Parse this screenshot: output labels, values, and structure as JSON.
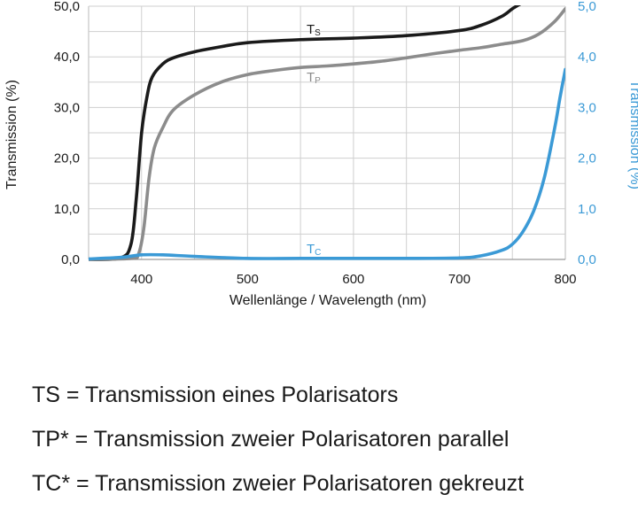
{
  "chart_data": {
    "type": "line",
    "title": "",
    "xlabel": "Wellenlänge / Wavelength (nm)",
    "ylabel": "Transmission (%)",
    "ylabel_right": "Transmission (%)",
    "xlim": [
      350,
      800
    ],
    "ylim": [
      0,
      50
    ],
    "ylim_right": [
      0,
      5
    ],
    "grid": true,
    "x_ticks": [
      "400",
      "500",
      "600",
      "700",
      "800"
    ],
    "y_ticks": [
      "0,0",
      "10,0",
      "20,0",
      "30,0",
      "40,0",
      "50,0"
    ],
    "y_ticks_right": [
      "0,0",
      "1,0",
      "2,0",
      "3,0",
      "4,0",
      "5,0"
    ],
    "series": [
      {
        "name": "TS",
        "label_main": "T",
        "label_sub": "S",
        "color": "#1a1a1a",
        "axis": "left",
        "points": [
          [
            350,
            0
          ],
          [
            380,
            0.3
          ],
          [
            390,
            3
          ],
          [
            395,
            12
          ],
          [
            400,
            25
          ],
          [
            405,
            32
          ],
          [
            410,
            36
          ],
          [
            420,
            38.6
          ],
          [
            430,
            39.8
          ],
          [
            450,
            41
          ],
          [
            475,
            42
          ],
          [
            500,
            42.8
          ],
          [
            550,
            43.4
          ],
          [
            600,
            43.7
          ],
          [
            650,
            44.2
          ],
          [
            700,
            45.2
          ],
          [
            720,
            46.2
          ],
          [
            740,
            48
          ],
          [
            750,
            49.5
          ],
          [
            758,
            50.5
          ]
        ]
      },
      {
        "name": "TP*",
        "label_main": "T",
        "label_sub": "P",
        "color": "#8c8c8c",
        "axis": "left",
        "points": [
          [
            350,
            0
          ],
          [
            390,
            0.2
          ],
          [
            397,
            1
          ],
          [
            402,
            6
          ],
          [
            407,
            16
          ],
          [
            412,
            22
          ],
          [
            420,
            26
          ],
          [
            430,
            29.5
          ],
          [
            450,
            32.5
          ],
          [
            475,
            35
          ],
          [
            500,
            36.5
          ],
          [
            525,
            37.3
          ],
          [
            550,
            37.9
          ],
          [
            575,
            38.2
          ],
          [
            600,
            38.6
          ],
          [
            625,
            39.1
          ],
          [
            650,
            39.8
          ],
          [
            675,
            40.6
          ],
          [
            700,
            41.3
          ],
          [
            720,
            41.8
          ],
          [
            740,
            42.5
          ],
          [
            760,
            43.2
          ],
          [
            775,
            44.5
          ],
          [
            790,
            47
          ],
          [
            800,
            49.5
          ]
        ]
      },
      {
        "name": "TC*",
        "label_main": "T",
        "label_sub": "C",
        "color": "#3b9ad6",
        "axis": "right",
        "points": [
          [
            350,
            0.01
          ],
          [
            380,
            0.04
          ],
          [
            400,
            0.09
          ],
          [
            420,
            0.09
          ],
          [
            450,
            0.06
          ],
          [
            500,
            0.02
          ],
          [
            550,
            0.02
          ],
          [
            600,
            0.02
          ],
          [
            650,
            0.02
          ],
          [
            700,
            0.03
          ],
          [
            720,
            0.07
          ],
          [
            740,
            0.18
          ],
          [
            750,
            0.3
          ],
          [
            760,
            0.55
          ],
          [
            770,
            0.95
          ],
          [
            780,
            1.6
          ],
          [
            790,
            2.6
          ],
          [
            795,
            3.2
          ],
          [
            800,
            3.75
          ]
        ]
      }
    ]
  },
  "legend": [
    "TS = Transmission eines Polarisators",
    "TP* = Transmission zweier Polarisatoren parallel",
    "TC* = Transmission zweier Polarisatoren gekreuzt"
  ]
}
